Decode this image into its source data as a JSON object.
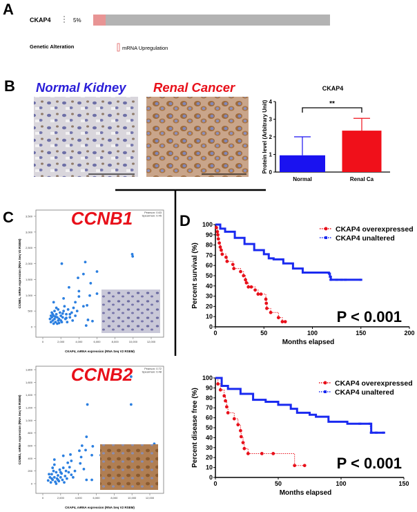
{
  "panels": {
    "a": "A",
    "b": "B",
    "c": "C",
    "d": "D"
  },
  "panel_a": {
    "gene": "CKAP4",
    "percent_text": "5%",
    "altered_fraction": 0.05,
    "row_label": "Genetic Alteration",
    "legend": "mRNA Upregulation",
    "colors": {
      "altered": "#e89494",
      "unaltered": "#b3b3b3"
    }
  },
  "panel_b": {
    "normal_title": "Normal Kidney",
    "cancer_title": "Renal Cancer",
    "colors": {
      "normal_title": "#2a1ed8",
      "cancer_title": "#e8101a"
    }
  },
  "chart_data": [
    {
      "type": "bar",
      "title": "CKAP4",
      "ylabel": "Protein level (Arbitrary Unit)",
      "xlabel": "",
      "categories": [
        "Normal",
        "Renal Ca"
      ],
      "values": [
        0.95,
        2.35
      ],
      "error": [
        2.0,
        3.05
      ],
      "colors": [
        "#1a12f0",
        "#f0101a"
      ],
      "ylim": [
        0,
        4
      ],
      "yticks": [
        "0",
        "1",
        "2",
        "3",
        "4"
      ],
      "significance": "**"
    },
    {
      "type": "scatter",
      "title": "CCNB1",
      "title_color": "#e8101a",
      "stats": [
        "Pearson: 0.63",
        "Spearman: 0.45"
      ],
      "xlabel": "CKAP4, mRNA expression (RNA Seq V2 RSEM)",
      "ylabel": "CCNB1, mRNA expression (RNA Seq V2 RSEM)",
      "xlim": [
        0,
        12000
      ],
      "ylim": [
        0,
        3500
      ],
      "xticks": [
        "0",
        "2,000",
        "4,000",
        "6,000",
        "8,000",
        "10,000",
        "12,000"
      ],
      "yticks": [
        "0",
        "500",
        "1,000",
        "1,500",
        "2,000",
        "2,500",
        "3,000",
        "3,500"
      ],
      "color": "#2b7fe0",
      "points": [
        [
          2100,
          2000
        ],
        [
          4700,
          2050
        ],
        [
          9900,
          2300
        ],
        [
          9950,
          2230
        ],
        [
          6000,
          1750
        ],
        [
          4500,
          1670
        ],
        [
          3900,
          1550
        ],
        [
          5300,
          1380
        ],
        [
          2900,
          1250
        ],
        [
          4000,
          1130
        ],
        [
          6000,
          1050
        ],
        [
          5200,
          990
        ],
        [
          4000,
          960
        ],
        [
          2300,
          900
        ],
        [
          1200,
          780
        ],
        [
          3600,
          780
        ],
        [
          4800,
          40
        ],
        [
          5500,
          180
        ],
        [
          5000,
          220
        ],
        [
          4500,
          650
        ],
        [
          4900,
          680
        ],
        [
          3000,
          400
        ],
        [
          900,
          150
        ],
        [
          1000,
          300
        ],
        [
          1100,
          200
        ],
        [
          1200,
          350
        ],
        [
          1300,
          250
        ],
        [
          1400,
          150
        ],
        [
          1500,
          400
        ],
        [
          1600,
          300
        ],
        [
          1700,
          200
        ],
        [
          1800,
          250
        ],
        [
          1900,
          450
        ],
        [
          2000,
          350
        ],
        [
          2100,
          150
        ],
        [
          2200,
          300
        ],
        [
          2300,
          500
        ],
        [
          2500,
          250
        ],
        [
          2600,
          400
        ],
        [
          2800,
          550
        ],
        [
          3000,
          300
        ],
        [
          3200,
          450
        ],
        [
          3400,
          600
        ],
        [
          3600,
          350
        ],
        [
          1000,
          450
        ],
        [
          1300,
          500
        ],
        [
          1700,
          550
        ],
        [
          2400,
          650
        ],
        [
          1200,
          100
        ],
        [
          1600,
          100
        ],
        [
          2000,
          200
        ],
        [
          800,
          250
        ],
        [
          2700,
          150
        ],
        [
          3300,
          200
        ],
        [
          1500,
          600
        ],
        [
          3800,
          500
        ],
        [
          1100,
          400
        ],
        [
          1400,
          320
        ],
        [
          1800,
          120
        ],
        [
          2200,
          420
        ],
        [
          2600,
          280
        ],
        [
          900,
          350
        ]
      ]
    },
    {
      "type": "scatter",
      "title": "CCNB2",
      "title_color": "#e8101a",
      "stats": [
        "Pearson: 0.72",
        "Spearman: 0.48"
      ],
      "xlabel": "CKAP4, mRNA expression (RNA Seq V2 RSEM)",
      "ylabel": "CCNB2, mRNA expression (RNA Seq V2 RSEM)",
      "xlim": [
        0,
        12000
      ],
      "ylim": [
        0,
        1800
      ],
      "xticks": [
        "0",
        "2,000",
        "4,000",
        "6,000",
        "8,000",
        "10,000",
        "12,000"
      ],
      "yticks": [
        "0",
        "200",
        "400",
        "600",
        "800",
        "1,000",
        "1,200",
        "1,400",
        "1,600",
        "1,800"
      ],
      "color": "#2b7fe0",
      "points": [
        [
          5000,
          1250
        ],
        [
          9900,
          1250
        ],
        [
          9900,
          1690
        ],
        [
          4900,
          740
        ],
        [
          4400,
          600
        ],
        [
          5600,
          590
        ],
        [
          4100,
          520
        ],
        [
          4800,
          530
        ],
        [
          5500,
          450
        ],
        [
          12500,
          630
        ],
        [
          6500,
          450
        ],
        [
          1300,
          380
        ],
        [
          2300,
          440
        ],
        [
          3100,
          460
        ],
        [
          4300,
          420
        ],
        [
          4200,
          320
        ],
        [
          4600,
          230
        ],
        [
          4900,
          60
        ],
        [
          5500,
          60
        ],
        [
          3200,
          360
        ],
        [
          2800,
          330
        ],
        [
          600,
          50
        ],
        [
          800,
          100
        ],
        [
          900,
          20
        ],
        [
          1000,
          150
        ],
        [
          1100,
          60
        ],
        [
          1200,
          200
        ],
        [
          1300,
          100
        ],
        [
          1400,
          30
        ],
        [
          1500,
          180
        ],
        [
          1600,
          80
        ],
        [
          1700,
          130
        ],
        [
          1800,
          40
        ],
        [
          1900,
          220
        ],
        [
          2000,
          100
        ],
        [
          2100,
          160
        ],
        [
          2200,
          60
        ],
        [
          2300,
          250
        ],
        [
          2500,
          120
        ],
        [
          2600,
          200
        ],
        [
          2700,
          80
        ],
        [
          2900,
          180
        ],
        [
          3000,
          260
        ],
        [
          3200,
          140
        ],
        [
          3400,
          100
        ],
        [
          3600,
          200
        ],
        [
          700,
          150
        ],
        [
          1100,
          250
        ],
        [
          1500,
          0
        ],
        [
          2400,
          20
        ],
        [
          1300,
          300
        ],
        [
          1000,
          80
        ],
        [
          1700,
          60
        ],
        [
          2000,
          180
        ]
      ]
    },
    {
      "type": "line",
      "subtype": "kaplan-meier",
      "ylabel": "Percent survival (%)",
      "xlabel": "Months elapsed",
      "xlim": [
        0,
        200
      ],
      "ylim": [
        0,
        100
      ],
      "xticks": [
        "0",
        "50",
        "100",
        "150",
        "200"
      ],
      "yticks": [
        "0",
        "10",
        "20",
        "30",
        "40",
        "50",
        "60",
        "70",
        "80",
        "90",
        "100"
      ],
      "annotation": "P < 0.001",
      "legend": "top-right",
      "series": [
        {
          "name": "CKAP4 overexpressed",
          "color": "#e8101a",
          "points": [
            [
              0,
              100
            ],
            [
              1,
              97
            ],
            [
              2,
              93
            ],
            [
              2.5,
              90
            ],
            [
              3,
              86
            ],
            [
              4,
              82
            ],
            [
              5,
              78
            ],
            [
              6,
              75
            ],
            [
              7,
              71
            ],
            [
              11,
              68
            ],
            [
              12,
              64
            ],
            [
              18,
              61
            ],
            [
              19,
              57
            ],
            [
              26,
              54
            ],
            [
              29,
              50
            ],
            [
              31,
              46
            ],
            [
              32,
              43
            ],
            [
              34,
              39
            ],
            [
              37,
              39
            ],
            [
              41,
              36
            ],
            [
              44,
              32
            ],
            [
              47,
              32
            ],
            [
              52,
              27
            ],
            [
              52.5,
              23
            ],
            [
              53,
              18
            ],
            [
              57,
              14
            ],
            [
              65,
              9
            ],
            [
              69,
              5
            ],
            [
              72,
              5
            ]
          ]
        },
        {
          "name": "CKAP4 unaltered",
          "color": "#1a2af0",
          "points": [
            [
              0,
              100
            ],
            [
              5,
              96
            ],
            [
              10,
              93
            ],
            [
              20,
              87
            ],
            [
              30,
              81
            ],
            [
              40,
              75
            ],
            [
              50,
              71
            ],
            [
              55,
              67
            ],
            [
              60,
              66
            ],
            [
              70,
              62
            ],
            [
              80,
              57
            ],
            [
              90,
              53
            ],
            [
              117,
              52
            ],
            [
              118,
              49
            ],
            [
              119,
              46
            ],
            [
              125,
              46
            ],
            [
              130,
              46
            ],
            [
              134,
              46
            ],
            [
              150,
              46
            ]
          ]
        }
      ]
    },
    {
      "type": "line",
      "subtype": "kaplan-meier",
      "ylabel": "Percent disease free (%)",
      "xlabel": "Months elapsed",
      "xlim": [
        0,
        150
      ],
      "ylim": [
        0,
        100
      ],
      "xticks": [
        "0",
        "50",
        "100",
        "150"
      ],
      "yticks": [
        "0",
        "10",
        "20",
        "30",
        "40",
        "50",
        "60",
        "70",
        "80",
        "90",
        "100"
      ],
      "annotation": "P < 0.001",
      "legend": "top-right",
      "series": [
        {
          "name": "CKAP4 overexpressed",
          "color": "#e8101a",
          "points": [
            [
              0,
              100
            ],
            [
              2,
              94
            ],
            [
              4,
              88
            ],
            [
              7,
              82
            ],
            [
              8,
              77
            ],
            [
              9,
              71
            ],
            [
              10,
              65
            ],
            [
              15,
              59
            ],
            [
              18,
              53
            ],
            [
              20,
              47
            ],
            [
              20.5,
              41
            ],
            [
              22,
              35
            ],
            [
              23,
              29
            ],
            [
              26,
              24
            ],
            [
              37,
              24
            ],
            [
              46,
              24
            ],
            [
              63,
              12
            ],
            [
              71,
              12
            ]
          ]
        },
        {
          "name": "CKAP4 unaltered",
          "color": "#1a2af0",
          "points": [
            [
              0,
              100
            ],
            [
              5,
              92
            ],
            [
              10,
              89
            ],
            [
              20,
              84
            ],
            [
              30,
              78
            ],
            [
              40,
              76
            ],
            [
              50,
              73
            ],
            [
              60,
              69
            ],
            [
              65,
              65
            ],
            [
              75,
              63
            ],
            [
              80,
              61
            ],
            [
              90,
              56
            ],
            [
              95,
              56
            ],
            [
              100,
              56
            ],
            [
              105,
              54
            ],
            [
              115,
              54
            ],
            [
              123,
              54
            ],
            [
              124,
              45
            ],
            [
              128,
              45
            ],
            [
              134,
              45
            ]
          ]
        }
      ]
    }
  ]
}
